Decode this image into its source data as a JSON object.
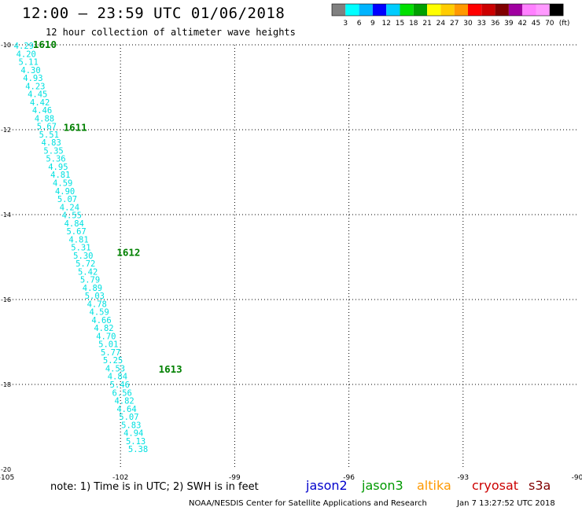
{
  "header": {
    "title": "12:00 – 23:59 UTC 01/06/2018",
    "subtitle": "12 hour collection of altimeter wave heights"
  },
  "color_scale": {
    "colors": [
      "#808080",
      "#00ffff",
      "#00b4ff",
      "#0000ff",
      "#00ccff",
      "#00e000",
      "#00a000",
      "#ffff00",
      "#ffcc00",
      "#ff9900",
      "#ff0000",
      "#cc0000",
      "#800000",
      "#a000a0",
      "#ff80ff",
      "#ff99ff",
      "#000000"
    ],
    "labels": [
      "3",
      "6",
      "9",
      "12",
      "15",
      "18",
      "21",
      "24",
      "27",
      "30",
      "33",
      "36",
      "39",
      "42",
      "45",
      "70"
    ],
    "unit": "(ft)"
  },
  "footer": {
    "note": "note: 1) Time is in UTC; 2) SWH is in feet",
    "credit": "NOAA/NESDIS Center for Satellite Applications and Research",
    "timestamp": "Jan  7 13:27:52 UTC 2018",
    "legend": [
      {
        "label": "jason2",
        "color": "#0000cc"
      },
      {
        "label": "jason3",
        "color": "#009900"
      },
      {
        "label": "altika",
        "color": "#ff9900"
      },
      {
        "label": "cryosat",
        "color": "#cc0000"
      },
      {
        "label": "s3a",
        "color": "#800000"
      }
    ]
  },
  "chart_data": {
    "type": "scatter",
    "title": "12:00 – 23:59 UTC 01/06/2018",
    "xlabel": "",
    "ylabel": "",
    "xlim": [
      -105,
      -90
    ],
    "ylim": [
      -20,
      -10
    ],
    "x_ticks": [
      -105,
      -102,
      -99,
      -96,
      -93,
      -90
    ],
    "y_ticks": [
      -10,
      -12,
      -14,
      -16,
      -18,
      -20
    ],
    "grid": true,
    "label_color": "#00e0e0",
    "time_label_color": "#008000",
    "series": [
      {
        "name": "jason3",
        "points": [
          {
            "x": -104.8,
            "y": -10.02,
            "v": "4.29"
          },
          {
            "x": -104.74,
            "y": -10.21,
            "v": "4.20"
          },
          {
            "x": -104.68,
            "y": -10.4,
            "v": "5.11"
          },
          {
            "x": -104.62,
            "y": -10.59,
            "v": "4.30"
          },
          {
            "x": -104.56,
            "y": -10.78,
            "v": "4.93"
          },
          {
            "x": -104.5,
            "y": -10.97,
            "v": "4.23"
          },
          {
            "x": -104.44,
            "y": -11.16,
            "v": "4.45"
          },
          {
            "x": -104.38,
            "y": -11.35,
            "v": "4.42"
          },
          {
            "x": -104.32,
            "y": -11.54,
            "v": "4.46"
          },
          {
            "x": -104.26,
            "y": -11.73,
            "v": "4.88"
          },
          {
            "x": -104.2,
            "y": -11.92,
            "v": "5.67"
          },
          {
            "x": -104.14,
            "y": -12.11,
            "v": "5.51"
          },
          {
            "x": -104.08,
            "y": -12.3,
            "v": "4.83"
          },
          {
            "x": -104.02,
            "y": -12.49,
            "v": "5.35"
          },
          {
            "x": -103.96,
            "y": -12.68,
            "v": "5.36"
          },
          {
            "x": -103.9,
            "y": -12.87,
            "v": "4.95"
          },
          {
            "x": -103.84,
            "y": -13.06,
            "v": "4.81"
          },
          {
            "x": -103.78,
            "y": -13.25,
            "v": "4.59"
          },
          {
            "x": -103.72,
            "y": -13.44,
            "v": "4.90"
          },
          {
            "x": -103.66,
            "y": -13.63,
            "v": "5.07"
          },
          {
            "x": -103.6,
            "y": -13.82,
            "v": "4.24"
          },
          {
            "x": -103.54,
            "y": -14.01,
            "v": "4.55"
          },
          {
            "x": -103.48,
            "y": -14.2,
            "v": "4.84"
          },
          {
            "x": -103.42,
            "y": -14.39,
            "v": "5.67"
          },
          {
            "x": -103.36,
            "y": -14.58,
            "v": "4.81"
          },
          {
            "x": -103.3,
            "y": -14.77,
            "v": "5.31"
          },
          {
            "x": -103.24,
            "y": -14.96,
            "v": "5.30"
          },
          {
            "x": -103.18,
            "y": -15.15,
            "v": "5.72"
          },
          {
            "x": -103.12,
            "y": -15.34,
            "v": "5.42"
          },
          {
            "x": -103.06,
            "y": -15.53,
            "v": "5.79"
          },
          {
            "x": -103.0,
            "y": -15.72,
            "v": "4.89"
          },
          {
            "x": -102.94,
            "y": -15.91,
            "v": "5.03"
          },
          {
            "x": -102.88,
            "y": -16.1,
            "v": "4.78"
          },
          {
            "x": -102.82,
            "y": -16.29,
            "v": "4.59"
          },
          {
            "x": -102.76,
            "y": -16.48,
            "v": "4.66"
          },
          {
            "x": -102.7,
            "y": -16.67,
            "v": "4.82"
          },
          {
            "x": -102.64,
            "y": -16.86,
            "v": "4.70"
          },
          {
            "x": -102.58,
            "y": -17.05,
            "v": "5.01"
          },
          {
            "x": -102.52,
            "y": -17.24,
            "v": "5.77"
          },
          {
            "x": -102.46,
            "y": -17.43,
            "v": "5.25"
          },
          {
            "x": -102.4,
            "y": -17.62,
            "v": "4.53"
          },
          {
            "x": -102.34,
            "y": -17.81,
            "v": "4.84"
          },
          {
            "x": -102.28,
            "y": -18.0,
            "v": "5.46"
          },
          {
            "x": -102.22,
            "y": -18.19,
            "v": "6.56"
          },
          {
            "x": -102.16,
            "y": -18.38,
            "v": "4.82"
          },
          {
            "x": -102.1,
            "y": -18.57,
            "v": "4.64"
          },
          {
            "x": -102.04,
            "y": -18.76,
            "v": "5.07"
          },
          {
            "x": -101.98,
            "y": -18.95,
            "v": "5.83"
          },
          {
            "x": -101.92,
            "y": -19.14,
            "v": "4.94"
          },
          {
            "x": -101.86,
            "y": -19.33,
            "v": "5.13"
          },
          {
            "x": -101.8,
            "y": -19.52,
            "v": "5.38"
          }
        ]
      }
    ],
    "time_labels": [
      {
        "x": -104.3,
        "y": -10.0,
        "label": "1610"
      },
      {
        "x": -103.5,
        "y": -11.95,
        "label": "1611"
      },
      {
        "x": -102.1,
        "y": -14.9,
        "label": "1612"
      },
      {
        "x": -101.0,
        "y": -17.65,
        "label": "1613"
      }
    ]
  }
}
